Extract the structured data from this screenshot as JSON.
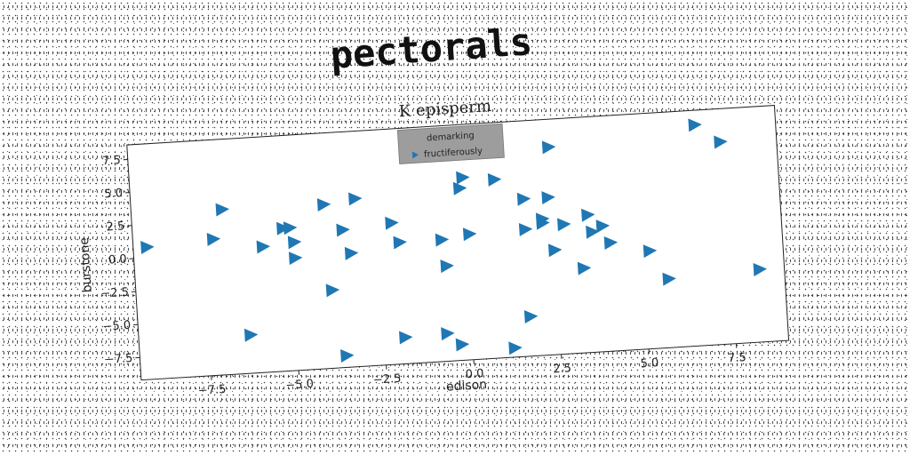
{
  "page": {
    "title": "pectorals"
  },
  "chart_data": {
    "type": "scatter",
    "title": "K episperm",
    "xlabel": "edison",
    "ylabel": "burstone",
    "xlim": [
      -9.5,
      9.0
    ],
    "ylim": [
      -9.2,
      8.6
    ],
    "xticks": [
      -7.5,
      -5.0,
      -2.5,
      0.0,
      2.5,
      5.0,
      7.5
    ],
    "yticks": [
      7.5,
      5.0,
      2.5,
      0.0,
      -2.5,
      -5.0,
      -7.5
    ],
    "xtick_labels": [
      "−7.5",
      "−5.0",
      "−2.5",
      "0.0",
      "2.5",
      "5.0",
      "7.5"
    ],
    "ytick_labels": [
      "7.5",
      "5.0",
      "2.5",
      "0.0",
      "−2.5",
      "−5.0",
      "−7.5"
    ],
    "grid": false,
    "legend": {
      "placement": "top-center",
      "title": "demarking",
      "entries": [
        "fructiferously"
      ]
    },
    "series": [
      {
        "name": "fructiferously",
        "marker": "triangle-right",
        "color": "#1f77b4",
        "points": [
          {
            "x": -9.1,
            "y": 0.8
          },
          {
            "x": -7.2,
            "y": 1.1
          },
          {
            "x": -6.9,
            "y": 3.3
          },
          {
            "x": -6.3,
            "y": -6.3
          },
          {
            "x": -5.8,
            "y": 0.3
          },
          {
            "x": -5.2,
            "y": 1.6
          },
          {
            "x": -5.0,
            "y": 1.6
          },
          {
            "x": -4.9,
            "y": 0.5
          },
          {
            "x": -4.9,
            "y": -0.7
          },
          {
            "x": -4.0,
            "y": 3.2
          },
          {
            "x": -3.9,
            "y": -3.3
          },
          {
            "x": -3.6,
            "y": -8.3
          },
          {
            "x": -3.5,
            "y": 1.2
          },
          {
            "x": -3.3,
            "y": -0.6
          },
          {
            "x": -3.1,
            "y": 3.5
          },
          {
            "x": -2.1,
            "y": 1.5
          },
          {
            "x": -1.9,
            "y": 0.0
          },
          {
            "x": -1.9,
            "y": -7.2
          },
          {
            "x": -0.7,
            "y": 0.0
          },
          {
            "x": -0.7,
            "y": -7.1
          },
          {
            "x": -0.6,
            "y": -2.0
          },
          {
            "x": -0.3,
            "y": -8.0
          },
          {
            "x": -0.1,
            "y": 3.8
          },
          {
            "x": 0.0,
            "y": 4.6
          },
          {
            "x": 0.1,
            "y": 0.3
          },
          {
            "x": 0.9,
            "y": 4.3
          },
          {
            "x": 1.2,
            "y": -8.5
          },
          {
            "x": 1.7,
            "y": 2.7
          },
          {
            "x": 1.7,
            "y": 0.4
          },
          {
            "x": 1.7,
            "y": -6.2
          },
          {
            "x": 2.2,
            "y": 1.1
          },
          {
            "x": 2.2,
            "y": 0.8
          },
          {
            "x": 2.4,
            "y": 2.7
          },
          {
            "x": 2.5,
            "y": 6.5
          },
          {
            "x": 2.5,
            "y": -1.3
          },
          {
            "x": 2.8,
            "y": 0.6
          },
          {
            "x": 3.3,
            "y": -2.8
          },
          {
            "x": 3.5,
            "y": 1.2
          },
          {
            "x": 3.6,
            "y": -0.1
          },
          {
            "x": 3.9,
            "y": 0.3
          },
          {
            "x": 4.1,
            "y": -1.0
          },
          {
            "x": 5.2,
            "y": -1.8
          },
          {
            "x": 5.7,
            "y": -4.0
          },
          {
            "x": 6.7,
            "y": 7.5
          },
          {
            "x": 7.4,
            "y": 6.1
          },
          {
            "x": 8.3,
            "y": -3.7
          }
        ]
      }
    ]
  }
}
